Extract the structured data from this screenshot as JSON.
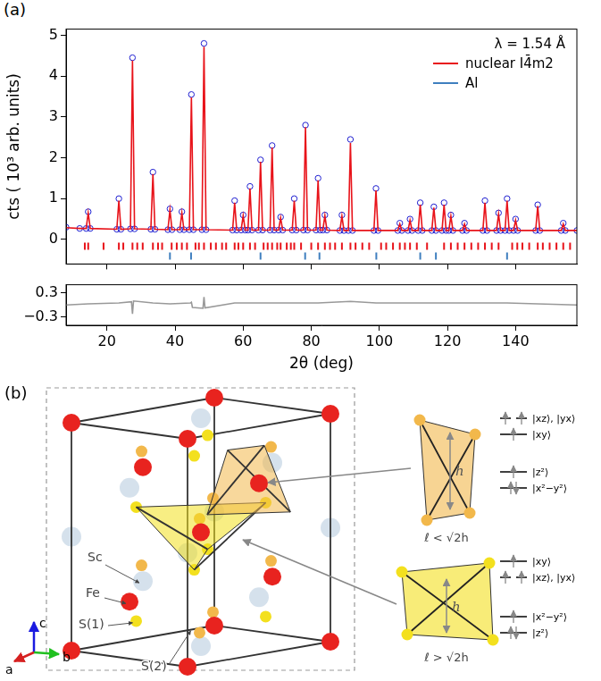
{
  "chart_data": [
    {
      "type": "line",
      "panel": "(a)",
      "ylabel": "cts ( 10³ arb. units)",
      "annotation": "λ = 1.54 Å",
      "legend": "upper right",
      "grid": false,
      "tick_labels": "y",
      "xlim": [
        8,
        158
      ],
      "xticks": [
        20,
        40,
        60,
        80,
        100,
        120,
        140
      ],
      "ylim": [
        -0.6,
        5.15
      ],
      "yticks": [
        0,
        1,
        2,
        3,
        4,
        5
      ],
      "x": [
        8,
        12,
        13.9,
        14.5,
        15.1,
        22.9,
        23.5,
        24.1,
        26.9,
        27.5,
        28.1,
        32.9,
        33.5,
        34.1,
        37.9,
        38.5,
        39.1,
        41.4,
        42,
        42.6,
        44.2,
        44.8,
        45.4,
        47.9,
        48.5,
        49.1,
        56.9,
        57.5,
        58.1,
        59.4,
        60,
        60.6,
        61.4,
        62,
        62.6,
        64.5,
        65.1,
        65.7,
        67.9,
        68.5,
        69.1,
        70.4,
        71,
        71.6,
        74.4,
        75,
        75.6,
        77.7,
        78.3,
        78.9,
        81.4,
        82,
        82.6,
        83.4,
        84,
        84.6,
        88.4,
        89,
        89.6,
        90.9,
        91.5,
        92.1,
        98.4,
        99,
        99.6,
        105.4,
        106,
        106.6,
        108.4,
        109,
        109.6,
        111.4,
        112,
        112.6,
        115.4,
        116,
        116.6,
        118.4,
        119,
        119.6,
        120.4,
        121,
        121.6,
        124.4,
        125,
        125.6,
        130.4,
        131,
        131.6,
        134.4,
        135,
        135.6,
        136.9,
        137.5,
        138.1,
        139.4,
        140,
        140.6,
        145.9,
        146.5,
        147.1,
        153.4,
        154,
        154.6,
        158
      ],
      "series": [
        {
          "type": "scatter",
          "marker": "open circle",
          "color": "#1f1fd0",
          "values": [
            0.3,
            0.27,
            0.27,
            0.68,
            0.27,
            0.25,
            1.0,
            0.25,
            0.26,
            4.45,
            0.26,
            0.25,
            1.65,
            0.25,
            0.24,
            0.75,
            0.24,
            0.24,
            0.68,
            0.24,
            0.24,
            3.55,
            0.24,
            0.24,
            4.8,
            0.24,
            0.23,
            0.95,
            0.23,
            0.23,
            0.6,
            0.23,
            0.23,
            1.3,
            0.23,
            0.23,
            1.95,
            0.23,
            0.23,
            2.3,
            0.23,
            0.23,
            0.55,
            0.23,
            0.23,
            1.0,
            0.23,
            0.23,
            2.8,
            0.23,
            0.23,
            1.5,
            0.23,
            0.23,
            0.6,
            0.23,
            0.22,
            0.6,
            0.22,
            0.22,
            2.45,
            0.22,
            0.22,
            1.25,
            0.22,
            0.22,
            0.4,
            0.22,
            0.22,
            0.5,
            0.22,
            0.22,
            0.9,
            0.22,
            0.22,
            0.8,
            0.22,
            0.22,
            0.9,
            0.22,
            0.22,
            0.6,
            0.22,
            0.22,
            0.4,
            0.22,
            0.22,
            0.95,
            0.22,
            0.22,
            0.65,
            0.22,
            0.22,
            1.0,
            0.22,
            0.22,
            0.5,
            0.22,
            0.22,
            0.85,
            0.22,
            0.22,
            0.4,
            0.22,
            0.22
          ]
        },
        {
          "name": "nuclear I4̄m2",
          "type": "line",
          "marker": "none",
          "line_style": "solid",
          "color": "#e8131a",
          "values": [
            0.29,
            0.27,
            0.27,
            0.65,
            0.27,
            0.25,
            0.95,
            0.25,
            0.26,
            4.38,
            0.26,
            0.25,
            1.6,
            0.25,
            0.24,
            0.72,
            0.24,
            0.24,
            0.65,
            0.24,
            0.24,
            3.48,
            0.24,
            0.24,
            4.72,
            0.24,
            0.23,
            0.9,
            0.23,
            0.23,
            0.58,
            0.23,
            0.23,
            1.25,
            0.23,
            0.23,
            1.9,
            0.23,
            0.23,
            2.25,
            0.23,
            0.23,
            0.53,
            0.23,
            0.23,
            0.95,
            0.23,
            0.23,
            2.75,
            0.23,
            0.23,
            1.45,
            0.23,
            0.23,
            0.58,
            0.23,
            0.22,
            0.57,
            0.22,
            0.22,
            2.36,
            0.22,
            0.22,
            1.2,
            0.22,
            0.22,
            0.38,
            0.22,
            0.22,
            0.47,
            0.22,
            0.22,
            0.85,
            0.22,
            0.22,
            0.78,
            0.22,
            0.22,
            0.85,
            0.22,
            0.22,
            0.57,
            0.22,
            0.22,
            0.38,
            0.22,
            0.22,
            0.9,
            0.22,
            0.22,
            0.62,
            0.22,
            0.22,
            0.95,
            0.22,
            0.22,
            0.47,
            0.22,
            0.22,
            0.82,
            0.22,
            0.22,
            0.38,
            0.22,
            0.22
          ]
        }
      ],
      "reflections": [
        {
          "color": "#e8131a",
          "x": [
            13.5,
            14.5,
            19.0,
            23.5,
            24.8,
            27.5,
            28.9,
            30.5,
            33.5,
            35.0,
            36.2,
            39.0,
            40.5,
            42.0,
            43.5,
            46.0,
            47.0,
            48.5,
            50.5,
            52.0,
            53.8,
            55.0,
            57.5,
            58.6,
            60.0,
            62.0,
            63.5,
            66.0,
            67.2,
            68.5,
            70.0,
            71.0,
            72.8,
            74.0,
            75.0,
            77.0,
            80.0,
            82.0,
            84.0,
            85.5,
            87.0,
            89.0,
            91.5,
            93.0,
            95.0,
            97.0,
            100.5,
            102.0,
            104.0,
            106.0,
            107.5,
            109.0,
            111.0,
            114.0,
            119.0,
            121.0,
            123.0,
            125.0,
            127.0,
            129.0,
            131.0,
            133.0,
            135.0,
            139.0,
            140.5,
            142.0,
            144.0,
            146.5,
            148.0,
            150.0,
            152.0,
            154.0,
            156.0
          ]
        },
        {
          "name": "Al",
          "color": "#3f7fbf",
          "x": [
            38.5,
            44.7,
            65.1,
            78.2,
            82.4,
            99.1,
            112.0,
            116.6,
            137.5
          ]
        }
      ]
    },
    {
      "type": "line",
      "xlabel": "2θ (deg)",
      "grid": false,
      "xlim": [
        8,
        158
      ],
      "xticks": [
        20,
        40,
        60,
        80,
        100,
        120,
        140
      ],
      "ylim": [
        -0.5,
        0.5
      ],
      "yticks": [
        {
          "value": -0.3,
          "label": "−0.3"
        },
        0.3
      ],
      "series": [
        {
          "type": "line",
          "marker": "none",
          "line_style": "solid",
          "color": "#999999",
          "x": [
            8,
            14.5,
            23.5,
            27.2,
            27.5,
            27.8,
            33.5,
            38.5,
            44.5,
            44.8,
            45.1,
            48.2,
            48.5,
            48.8,
            57.5,
            62,
            65.1,
            68.5,
            78.3,
            82,
            91.5,
            99,
            112,
            119,
            131,
            137.5,
            146.5,
            158
          ],
          "values": [
            0,
            0.03,
            0.05,
            0.08,
            -0.22,
            0.1,
            0.05,
            0.03,
            0.05,
            0.07,
            -0.06,
            -0.08,
            0.2,
            -0.07,
            0.05,
            0.05,
            0.05,
            0.05,
            0.05,
            0.05,
            0.09,
            0.05,
            0.05,
            0.05,
            0.05,
            0.05,
            0.03,
            0
          ]
        }
      ]
    }
  ],
  "diagram": {
    "panel": "(b)",
    "atom_labels": [
      "Sc",
      "Fe",
      "S(1)",
      "S(2)"
    ],
    "axis_labels": [
      "a",
      "b",
      "c"
    ],
    "tetrahedra": [
      {
        "height": "h",
        "edge": "ℓ < √2h",
        "levels": [
          {
            "label": "|xz⟩, |yx⟩",
            "electrons": 2
          },
          {
            "label": "|xy⟩",
            "electrons": 1
          },
          {
            "label": "|z²⟩",
            "electrons": 1
          },
          {
            "label": "|x²−y²⟩",
            "electrons": 2
          }
        ]
      },
      {
        "height": "h",
        "edge": "ℓ > √2h",
        "levels": [
          {
            "label": "|xy⟩",
            "electrons": 1
          },
          {
            "label": "|xz⟩, |yx⟩",
            "electrons": 2
          },
          {
            "label": "|x²−y²⟩",
            "electrons": 1
          },
          {
            "label": "|z²⟩",
            "electrons": 2
          }
        ]
      }
    ]
  }
}
